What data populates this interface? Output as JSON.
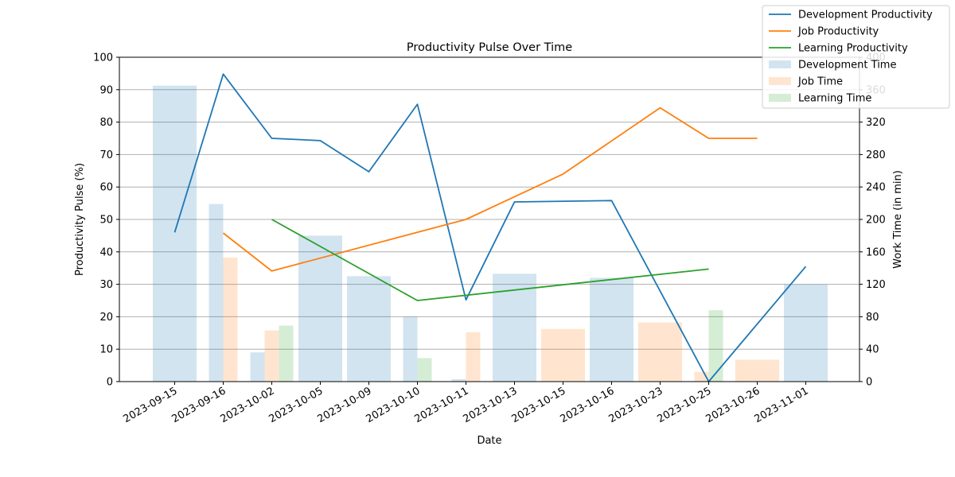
{
  "chart_data": {
    "type": "bar+line",
    "title": "Productivity Pulse Over Time",
    "xlabel": "Date",
    "ylabel_left": "Productivity Pulse (%)",
    "ylabel_right": "Work Time (in min)",
    "ylim_left": [
      0,
      100
    ],
    "ylim_right": [
      0,
      400
    ],
    "yticks_left": [
      "0",
      "10",
      "20",
      "30",
      "40",
      "50",
      "60",
      "70",
      "80",
      "90",
      "100"
    ],
    "yticks_right": [
      "0",
      "40",
      "80",
      "120",
      "160",
      "200",
      "240",
      "280",
      "320",
      "360",
      "400"
    ],
    "grid": "horizontal",
    "legend_position": "top-right",
    "categories": [
      "2023-09-15",
      "2023-09-16",
      "2023-10-02",
      "2023-10-05",
      "2023-10-09",
      "2023-10-10",
      "2023-10-11",
      "2023-10-13",
      "2023-10-15",
      "2023-10-16",
      "2023-10-23",
      "2023-10-25",
      "2023-10-26",
      "2023-11-01"
    ],
    "lines": [
      {
        "name": "Development Productivity",
        "color": "#1f77b4",
        "values": [
          46,
          94.8,
          75,
          74.3,
          64.7,
          85.5,
          25.2,
          55.4,
          null,
          55.8,
          null,
          0,
          null,
          35.5
        ]
      },
      {
        "name": "Job Productivity",
        "color": "#ff7f0e",
        "values": [
          null,
          45.8,
          34.1,
          null,
          null,
          null,
          50,
          null,
          64,
          null,
          84.4,
          75,
          75,
          null
        ]
      },
      {
        "name": "Learning Productivity",
        "color": "#2ca02c",
        "values": [
          null,
          null,
          50,
          null,
          null,
          25,
          null,
          null,
          null,
          null,
          null,
          34.7,
          null,
          null
        ]
      }
    ],
    "bars": [
      {
        "name": "Development Time",
        "color": "#1f77b4",
        "values": [
          365,
          219,
          36,
          180,
          130,
          80,
          3,
          133,
          null,
          128,
          null,
          null,
          null,
          120
        ]
      },
      {
        "name": "Job Time",
        "color": "#ff7f0e",
        "values": [
          null,
          153,
          63,
          null,
          null,
          null,
          61,
          null,
          65,
          null,
          73,
          12,
          27,
          null
        ]
      },
      {
        "name": "Learning Time",
        "color": "#2ca02c",
        "values": [
          null,
          null,
          69,
          null,
          null,
          29,
          null,
          null,
          null,
          null,
          null,
          88,
          null,
          null
        ]
      }
    ]
  }
}
